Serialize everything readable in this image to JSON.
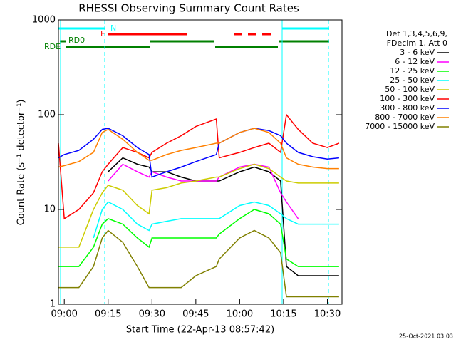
{
  "chart_data": {
    "type": "line",
    "log_scale_y": true,
    "title": "RHESSI Observing Summary Count Rates",
    "x_label": "Start Time (22-Apr-13 08:57:42)",
    "y_label": "Count Rate (s⁻¹ detector⁻¹)",
    "timestamp": "25-Oct-2021 03:03",
    "legend_header": [
      "Det 1,3,4,5,6,9,",
      "FDecim 1, Att 0"
    ],
    "annotations": [
      "N",
      "F",
      "RD0",
      "RDE"
    ],
    "x": [
      "08:58",
      "09:00",
      "09:05",
      "09:10",
      "09:13",
      "09:15",
      "09:20",
      "09:25",
      "09:29",
      "09:30",
      "09:35",
      "09:40",
      "09:45",
      "09:52",
      "09:53",
      "10:00",
      "10:05",
      "10:10",
      "10:14",
      "10:16",
      "10:20",
      "10:25",
      "10:30",
      "10:34"
    ],
    "xlim": [
      "08:58",
      "10:35"
    ],
    "xticks": [
      "09:00",
      "09:15",
      "09:30",
      "09:45",
      "10:00",
      "10:15",
      "10:30"
    ],
    "ylim": [
      1,
      1000
    ],
    "yticks": [
      1,
      10,
      100,
      1000
    ],
    "series": [
      {
        "name": "3 - 6 keV",
        "color": "#000000",
        "values": [
          null,
          null,
          null,
          null,
          null,
          25,
          35,
          30,
          28,
          25,
          25,
          22,
          20,
          20,
          20,
          25,
          28,
          25,
          20,
          2.5,
          2,
          2,
          2,
          2
        ]
      },
      {
        "name": "6 - 12 keV",
        "color": "#ff00ff",
        "values": [
          null,
          null,
          null,
          null,
          null,
          20,
          30,
          25,
          22,
          25,
          22,
          20,
          20,
          20,
          22,
          28,
          30,
          28,
          15,
          12,
          8,
          null,
          null,
          null
        ]
      },
      {
        "name": "12 - 25 keV",
        "color": "#00ff00",
        "values": [
          2.5,
          2.5,
          2.5,
          4,
          7,
          8,
          7,
          5,
          4,
          5,
          5,
          5,
          5,
          5,
          5.5,
          8,
          10,
          9,
          7,
          3,
          2.5,
          2.5,
          2.5,
          2.5
        ]
      },
      {
        "name": "25 - 50 keV",
        "color": "#00ffff",
        "values": [
          null,
          null,
          null,
          5,
          10,
          12,
          10,
          7,
          6,
          7,
          7.5,
          8,
          8,
          8,
          8,
          11,
          12,
          11,
          9,
          8,
          7,
          7,
          7,
          7
        ]
      },
      {
        "name": "50 - 100 keV",
        "color": "#cccc00",
        "values": [
          4,
          4,
          4,
          10,
          15,
          18,
          16,
          11,
          9,
          16,
          17,
          19,
          20,
          22,
          22,
          27,
          30,
          27,
          22,
          20,
          19,
          19,
          19,
          19
        ]
      },
      {
        "name": "100 - 300 keV",
        "color": "#ff0000",
        "values": [
          50,
          8,
          10,
          15,
          25,
          30,
          45,
          40,
          35,
          40,
          50,
          60,
          75,
          90,
          35,
          40,
          45,
          50,
          40,
          100,
          70,
          50,
          45,
          50
        ]
      },
      {
        "name": "300 - 800 keV",
        "color": "#0000ff",
        "values": [
          35,
          38,
          42,
          55,
          70,
          72,
          60,
          45,
          38,
          22,
          25,
          28,
          32,
          38,
          50,
          65,
          72,
          68,
          60,
          50,
          40,
          36,
          34,
          35
        ]
      },
      {
        "name": "800 - 7000 keV",
        "color": "#ff8000",
        "values": [
          28,
          29,
          32,
          40,
          65,
          70,
          55,
          40,
          33,
          33,
          38,
          42,
          45,
          50,
          50,
          65,
          72,
          65,
          50,
          35,
          30,
          28,
          27,
          27
        ]
      },
      {
        "name": "7000 - 15000 keV",
        "color": "#808000",
        "values": [
          1.5,
          1.5,
          1.5,
          2.5,
          5,
          6,
          4.5,
          2.5,
          1.5,
          1.5,
          1.5,
          1.5,
          2,
          2.5,
          3,
          5,
          6,
          5,
          3.5,
          1.2,
          1.2,
          1.2,
          1.2,
          1.2
        ]
      }
    ]
  }
}
